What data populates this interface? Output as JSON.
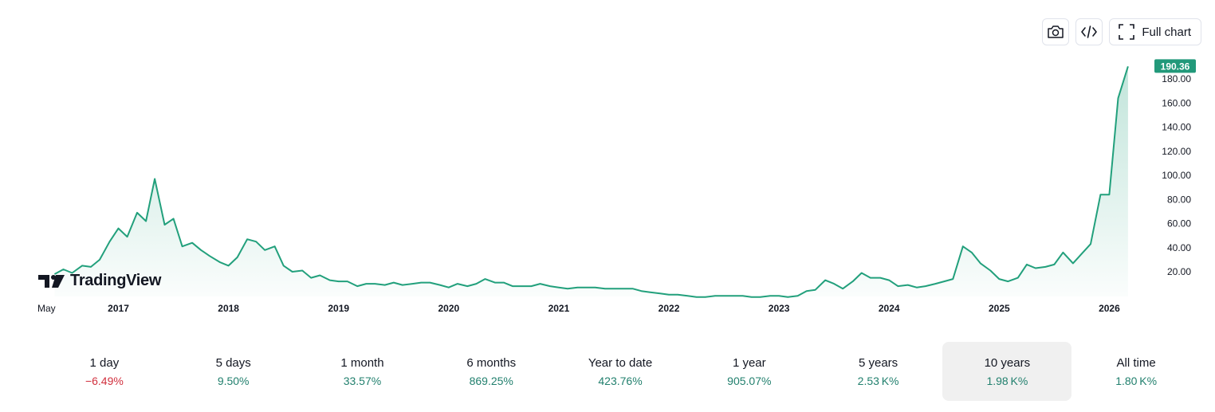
{
  "toolbar": {
    "full_chart_label": "Full chart"
  },
  "brand": {
    "name": "TradingView"
  },
  "colors": {
    "line": "#22a07c",
    "positive": "#22806e",
    "negative": "#d1303e",
    "price_badge": "#22997a"
  },
  "periods": [
    {
      "label": "1 day",
      "value": "−6.49%",
      "trend": "negative"
    },
    {
      "label": "5 days",
      "value": "9.50%",
      "trend": "positive"
    },
    {
      "label": "1 month",
      "value": "33.57%",
      "trend": "positive"
    },
    {
      "label": "6 months",
      "value": "869.25%",
      "trend": "positive"
    },
    {
      "label": "Year to date",
      "value": "423.76%",
      "trend": "positive"
    },
    {
      "label": "1 year",
      "value": "905.07%",
      "trend": "positive"
    },
    {
      "label": "5 years",
      "value": "2.53 K%",
      "trend": "positive"
    },
    {
      "label": "10 years",
      "value": "1.98 K%",
      "trend": "positive",
      "active": true
    },
    {
      "label": "All time",
      "value": "1.80 K%",
      "trend": "positive"
    }
  ],
  "chart_data": {
    "type": "area",
    "x_start": 2016.33,
    "x_end": 2026.33,
    "x_ticks": [
      {
        "label": "May",
        "x": 2016.33
      },
      {
        "label": "2017",
        "x": 2017.0
      },
      {
        "label": "2018",
        "x": 2018.0
      },
      {
        "label": "2019",
        "x": 2019.0
      },
      {
        "label": "2020",
        "x": 2020.0
      },
      {
        "label": "2021",
        "x": 2021.0
      },
      {
        "label": "2022",
        "x": 2022.0
      },
      {
        "label": "2023",
        "x": 2023.0
      },
      {
        "label": "2024",
        "x": 2024.0
      },
      {
        "label": "2025",
        "x": 2025.0
      },
      {
        "label": "2026",
        "x": 2026.0
      }
    ],
    "y_ticks": [
      "20.00",
      "40.00",
      "60.00",
      "80.00",
      "100.00",
      "120.00",
      "140.00",
      "160.00",
      "180.00"
    ],
    "ylim": [
      0,
      200
    ],
    "last_price": "190.36",
    "series": [
      {
        "values": [
          [
            2016.42,
            18
          ],
          [
            2016.5,
            22
          ],
          [
            2016.58,
            19
          ],
          [
            2016.67,
            25
          ],
          [
            2016.75,
            24
          ],
          [
            2016.83,
            30
          ],
          [
            2016.92,
            45
          ],
          [
            2017.0,
            56
          ],
          [
            2017.08,
            49
          ],
          [
            2017.17,
            69
          ],
          [
            2017.25,
            62
          ],
          [
            2017.33,
            97
          ],
          [
            2017.42,
            59
          ],
          [
            2017.5,
            64
          ],
          [
            2017.58,
            41
          ],
          [
            2017.67,
            44
          ],
          [
            2017.75,
            38
          ],
          [
            2017.83,
            33
          ],
          [
            2017.92,
            28
          ],
          [
            2018.0,
            25
          ],
          [
            2018.08,
            32
          ],
          [
            2018.17,
            47
          ],
          [
            2018.25,
            45
          ],
          [
            2018.33,
            38
          ],
          [
            2018.42,
            41
          ],
          [
            2018.5,
            25
          ],
          [
            2018.58,
            20
          ],
          [
            2018.67,
            21
          ],
          [
            2018.75,
            15
          ],
          [
            2018.83,
            17
          ],
          [
            2018.92,
            13
          ],
          [
            2019.0,
            12
          ],
          [
            2019.08,
            12
          ],
          [
            2019.17,
            8
          ],
          [
            2019.25,
            10
          ],
          [
            2019.33,
            10
          ],
          [
            2019.42,
            9
          ],
          [
            2019.5,
            11
          ],
          [
            2019.58,
            9
          ],
          [
            2019.67,
            10
          ],
          [
            2019.75,
            11
          ],
          [
            2019.83,
            11
          ],
          [
            2019.92,
            9
          ],
          [
            2020.0,
            7
          ],
          [
            2020.08,
            10
          ],
          [
            2020.17,
            8
          ],
          [
            2020.25,
            10
          ],
          [
            2020.33,
            14
          ],
          [
            2020.42,
            11
          ],
          [
            2020.5,
            11
          ],
          [
            2020.58,
            8
          ],
          [
            2020.67,
            8
          ],
          [
            2020.75,
            8
          ],
          [
            2020.83,
            10
          ],
          [
            2020.92,
            8
          ],
          [
            2021.0,
            7
          ],
          [
            2021.08,
            6
          ],
          [
            2021.17,
            7
          ],
          [
            2021.25,
            7
          ],
          [
            2021.33,
            7
          ],
          [
            2021.42,
            6
          ],
          [
            2021.5,
            6
          ],
          [
            2021.58,
            6
          ],
          [
            2021.67,
            6
          ],
          [
            2021.75,
            4
          ],
          [
            2021.83,
            3
          ],
          [
            2021.92,
            2
          ],
          [
            2022.0,
            1
          ],
          [
            2022.08,
            1
          ],
          [
            2022.17,
            0
          ],
          [
            2022.25,
            -1
          ],
          [
            2022.33,
            -1
          ],
          [
            2022.42,
            0
          ],
          [
            2022.5,
            0
          ],
          [
            2022.58,
            0
          ],
          [
            2022.67,
            0
          ],
          [
            2022.75,
            -1
          ],
          [
            2022.83,
            -1
          ],
          [
            2022.92,
            0
          ],
          [
            2023.0,
            0
          ],
          [
            2023.08,
            -1
          ],
          [
            2023.17,
            0
          ],
          [
            2023.25,
            4
          ],
          [
            2023.33,
            5
          ],
          [
            2023.42,
            13
          ],
          [
            2023.5,
            10
          ],
          [
            2023.58,
            6
          ],
          [
            2023.67,
            12
          ],
          [
            2023.75,
            19
          ],
          [
            2023.83,
            15
          ],
          [
            2023.92,
            15
          ],
          [
            2024.0,
            13
          ],
          [
            2024.08,
            8
          ],
          [
            2024.17,
            9
          ],
          [
            2024.25,
            7
          ],
          [
            2024.33,
            8
          ],
          [
            2024.42,
            10
          ],
          [
            2024.5,
            12
          ],
          [
            2024.58,
            14
          ],
          [
            2024.67,
            41
          ],
          [
            2024.75,
            36
          ],
          [
            2024.83,
            27
          ],
          [
            2024.92,
            21
          ],
          [
            2025.0,
            14
          ],
          [
            2025.08,
            12
          ],
          [
            2025.17,
            15
          ],
          [
            2025.25,
            26
          ],
          [
            2025.33,
            23
          ],
          [
            2025.42,
            24
          ],
          [
            2025.5,
            26
          ],
          [
            2025.58,
            36
          ],
          [
            2025.67,
            27
          ],
          [
            2025.75,
            35
          ],
          [
            2025.83,
            43
          ],
          [
            2025.92,
            84
          ],
          [
            2026.0,
            84
          ],
          [
            2026.08,
            164
          ],
          [
            2026.17,
            190.36
          ]
        ]
      }
    ]
  }
}
